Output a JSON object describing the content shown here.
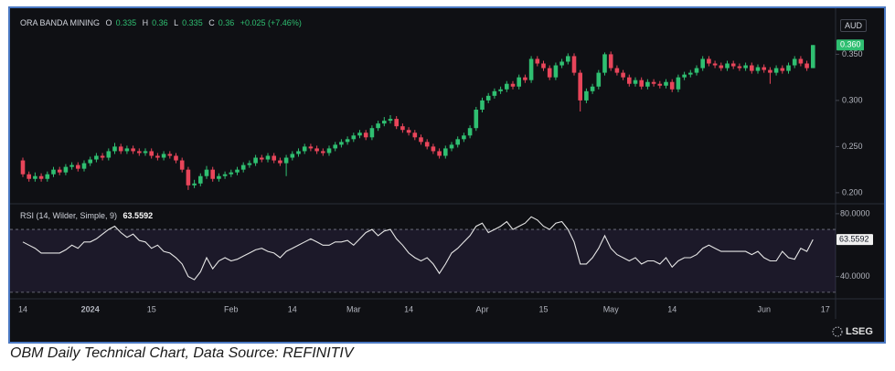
{
  "chart_data": [
    {
      "type": "candlestick",
      "title": "ORA BANDA MINING",
      "ohlc_keys": [
        "O",
        "H",
        "L",
        "C"
      ],
      "change": "+0.025 (+7.46%)",
      "currency": "AUD",
      "last_value_label": "0.360",
      "up_color": "#2fbf71",
      "down_color": "#e8455a",
      "grid": false,
      "ylim": [
        0.19,
        0.39
      ],
      "yticks": [
        {
          "value": 0.2,
          "label": "0.200"
        },
        {
          "value": 0.25,
          "label": "0.250"
        },
        {
          "value": 0.3,
          "label": "0.300"
        },
        {
          "value": 0.35,
          "label": "0.350"
        }
      ],
      "categories": [
        "14",
        null,
        null,
        null,
        null,
        null,
        null,
        null,
        null,
        null,
        null,
        "2024",
        null,
        null,
        null,
        null,
        null,
        null,
        null,
        null,
        null,
        "15",
        null,
        null,
        null,
        null,
        null,
        null,
        null,
        null,
        null,
        null,
        null,
        null,
        "Feb",
        null,
        null,
        null,
        null,
        null,
        null,
        null,
        null,
        null,
        "14",
        null,
        null,
        null,
        null,
        null,
        null,
        null,
        null,
        null,
        "Mar",
        null,
        null,
        null,
        null,
        null,
        null,
        null,
        null,
        "14",
        null,
        null,
        null,
        null,
        null,
        null,
        null,
        null,
        null,
        null,
        null,
        "Apr",
        null,
        null,
        null,
        null,
        null,
        null,
        null,
        null,
        null,
        "15",
        null,
        null,
        null,
        null,
        null,
        null,
        null,
        null,
        null,
        null,
        "May",
        null,
        null,
        null,
        null,
        null,
        null,
        null,
        null,
        null,
        "14",
        null,
        null,
        null,
        null,
        null,
        null,
        null,
        null,
        null,
        null,
        null,
        null,
        null,
        null,
        "Jun",
        null,
        null,
        null,
        null,
        null,
        null,
        null,
        null,
        null,
        "17"
      ],
      "open": [
        0.235,
        0.22,
        0.215,
        0.218,
        0.215,
        0.22,
        0.225,
        0.222,
        0.228,
        0.23,
        0.226,
        0.232,
        0.236,
        0.24,
        0.238,
        0.245,
        0.25,
        0.245,
        0.248,
        0.245,
        0.243,
        0.245,
        0.24,
        0.238,
        0.242,
        0.24,
        0.235,
        0.225,
        0.208,
        0.21,
        0.218,
        0.225,
        0.215,
        0.218,
        0.22,
        0.222,
        0.225,
        0.23,
        0.232,
        0.238,
        0.236,
        0.24,
        0.235,
        0.232,
        0.238,
        0.242,
        0.245,
        0.25,
        0.248,
        0.245,
        0.243,
        0.248,
        0.252,
        0.255,
        0.258,
        0.262,
        0.265,
        0.26,
        0.27,
        0.275,
        0.278,
        0.28,
        0.272,
        0.268,
        0.265,
        0.26,
        0.255,
        0.25,
        0.245,
        0.24,
        0.248,
        0.252,
        0.258,
        0.262,
        0.27,
        0.29,
        0.3,
        0.305,
        0.31,
        0.312,
        0.318,
        0.315,
        0.325,
        0.322,
        0.345,
        0.34,
        0.335,
        0.325,
        0.338,
        0.342,
        0.348,
        0.33,
        0.3,
        0.31,
        0.315,
        0.33,
        0.35,
        0.335,
        0.33,
        0.325,
        0.318,
        0.322,
        0.315,
        0.32,
        0.318,
        0.316,
        0.32,
        0.312,
        0.325,
        0.328,
        0.33,
        0.335,
        0.345,
        0.34,
        0.338,
        0.335,
        0.34,
        0.337,
        0.335,
        0.338,
        0.332,
        0.336,
        0.333,
        0.33,
        0.335,
        0.332,
        0.338,
        0.345,
        0.34,
        0.335,
        null,
        null
      ],
      "high": [
        0.238,
        0.223,
        0.222,
        0.221,
        0.223,
        0.228,
        0.228,
        0.231,
        0.233,
        0.233,
        0.235,
        0.239,
        0.243,
        0.243,
        0.248,
        0.254,
        0.253,
        0.251,
        0.251,
        0.248,
        0.248,
        0.248,
        0.243,
        0.245,
        0.245,
        0.243,
        0.238,
        0.228,
        0.214,
        0.221,
        0.229,
        0.228,
        0.221,
        0.223,
        0.225,
        0.228,
        0.233,
        0.235,
        0.241,
        0.241,
        0.243,
        0.243,
        0.238,
        0.241,
        0.245,
        0.248,
        0.253,
        0.253,
        0.251,
        0.248,
        0.251,
        0.255,
        0.258,
        0.261,
        0.265,
        0.268,
        0.268,
        0.273,
        0.278,
        0.282,
        0.284,
        0.283,
        0.275,
        0.271,
        0.268,
        0.263,
        0.258,
        0.253,
        0.248,
        0.251,
        0.255,
        0.261,
        0.265,
        0.273,
        0.293,
        0.303,
        0.308,
        0.313,
        0.315,
        0.321,
        0.321,
        0.328,
        0.328,
        0.348,
        0.348,
        0.343,
        0.338,
        0.341,
        0.345,
        0.351,
        0.351,
        0.333,
        0.313,
        0.318,
        0.333,
        0.352,
        0.353,
        0.338,
        0.333,
        0.328,
        0.325,
        0.325,
        0.323,
        0.323,
        0.321,
        0.323,
        0.323,
        0.328,
        0.331,
        0.333,
        0.338,
        0.348,
        0.348,
        0.343,
        0.341,
        0.343,
        0.343,
        0.34,
        0.341,
        0.341,
        0.339,
        0.339,
        0.336,
        0.338,
        0.338,
        0.341,
        0.348,
        0.348,
        0.343,
        0.36,
        null,
        null
      ],
      "low": [
        0.217,
        0.212,
        0.212,
        0.212,
        0.212,
        0.217,
        0.219,
        0.219,
        0.225,
        0.223,
        0.223,
        0.229,
        0.233,
        0.235,
        0.235,
        0.242,
        0.242,
        0.242,
        0.242,
        0.24,
        0.24,
        0.237,
        0.235,
        0.235,
        0.237,
        0.232,
        0.222,
        0.203,
        0.205,
        0.207,
        0.215,
        0.212,
        0.212,
        0.215,
        0.217,
        0.219,
        0.222,
        0.227,
        0.229,
        0.233,
        0.233,
        0.232,
        0.229,
        0.218,
        0.235,
        0.239,
        0.242,
        0.245,
        0.242,
        0.24,
        0.24,
        0.245,
        0.249,
        0.252,
        0.255,
        0.259,
        0.257,
        0.257,
        0.267,
        0.272,
        0.275,
        0.269,
        0.265,
        0.262,
        0.257,
        0.252,
        0.247,
        0.242,
        0.237,
        0.237,
        0.245,
        0.249,
        0.255,
        0.259,
        0.267,
        0.287,
        0.297,
        0.302,
        0.307,
        0.309,
        0.312,
        0.312,
        0.319,
        0.319,
        0.337,
        0.332,
        0.322,
        0.322,
        0.335,
        0.339,
        0.327,
        0.288,
        0.297,
        0.307,
        0.312,
        0.327,
        0.332,
        0.327,
        0.322,
        0.315,
        0.315,
        0.312,
        0.312,
        0.315,
        0.313,
        0.313,
        0.309,
        0.309,
        0.322,
        0.325,
        0.327,
        0.332,
        0.337,
        0.335,
        0.332,
        0.332,
        0.334,
        0.332,
        0.332,
        0.329,
        0.329,
        0.33,
        0.318,
        0.327,
        0.329,
        0.329,
        0.335,
        0.337,
        0.332,
        0.335,
        null,
        null
      ],
      "close": [
        0.22,
        0.215,
        0.218,
        0.215,
        0.22,
        0.225,
        0.222,
        0.228,
        0.23,
        0.226,
        0.232,
        0.236,
        0.24,
        0.238,
        0.245,
        0.25,
        0.245,
        0.248,
        0.245,
        0.243,
        0.245,
        0.24,
        0.238,
        0.242,
        0.24,
        0.235,
        0.225,
        0.208,
        0.21,
        0.218,
        0.225,
        0.215,
        0.218,
        0.22,
        0.222,
        0.225,
        0.23,
        0.232,
        0.238,
        0.236,
        0.24,
        0.235,
        0.232,
        0.238,
        0.242,
        0.245,
        0.25,
        0.248,
        0.245,
        0.243,
        0.248,
        0.252,
        0.255,
        0.258,
        0.262,
        0.265,
        0.26,
        0.27,
        0.275,
        0.278,
        0.28,
        0.272,
        0.268,
        0.265,
        0.26,
        0.255,
        0.25,
        0.245,
        0.24,
        0.248,
        0.252,
        0.258,
        0.262,
        0.27,
        0.29,
        0.3,
        0.305,
        0.31,
        0.312,
        0.318,
        0.315,
        0.325,
        0.322,
        0.345,
        0.34,
        0.335,
        0.325,
        0.338,
        0.342,
        0.348,
        0.33,
        0.3,
        0.31,
        0.315,
        0.33,
        0.35,
        0.335,
        0.33,
        0.325,
        0.318,
        0.322,
        0.315,
        0.32,
        0.318,
        0.316,
        0.32,
        0.312,
        0.325,
        0.328,
        0.33,
        0.335,
        0.345,
        0.34,
        0.338,
        0.335,
        0.34,
        0.337,
        0.335,
        0.338,
        0.332,
        0.336,
        0.333,
        0.33,
        0.335,
        0.332,
        0.338,
        0.345,
        0.34,
        0.335,
        0.36,
        null,
        null
      ]
    },
    {
      "type": "line",
      "title": "RSI (14, Wilder, Simple, 9)",
      "color": "#e6e6e6",
      "ylim": [
        27,
        84
      ],
      "band": [
        30,
        70
      ],
      "band_color": "#7e57c2",
      "yticks": [
        {
          "value": 40,
          "label": "40.0000"
        },
        {
          "value": 80,
          "label": "80.0000"
        }
      ],
      "values": [
        62,
        60,
        58,
        55,
        55,
        55,
        55,
        57,
        60,
        58,
        62,
        62,
        64,
        67,
        70,
        72,
        68,
        65,
        67,
        63,
        62,
        58,
        60,
        56,
        55,
        52,
        48,
        40,
        38,
        43,
        52,
        45,
        50,
        52,
        50,
        51,
        53,
        55,
        57,
        58,
        56,
        55,
        52,
        56,
        58,
        60,
        62,
        64,
        62,
        60,
        60,
        62,
        62,
        63,
        60,
        64,
        68,
        70,
        66,
        69,
        70,
        64,
        60,
        55,
        52,
        50,
        52,
        48,
        42,
        48,
        55,
        58,
        62,
        66,
        72,
        74,
        68,
        70,
        72,
        75,
        70,
        72,
        74,
        78,
        76,
        72,
        70,
        74,
        75,
        70,
        62,
        48,
        48,
        52,
        58,
        66,
        58,
        54,
        52,
        50,
        52,
        48,
        50,
        50,
        48,
        52,
        46,
        50,
        52,
        52,
        54,
        58,
        60,
        58,
        56,
        56,
        56,
        56,
        56,
        54,
        56,
        52,
        50,
        50,
        56,
        52,
        51,
        58,
        56,
        63.5592,
        null,
        null
      ]
    }
  ],
  "logo": "LSEG",
  "caption": "OBM Daily Technical Chart, Data Source: REFINITIV"
}
